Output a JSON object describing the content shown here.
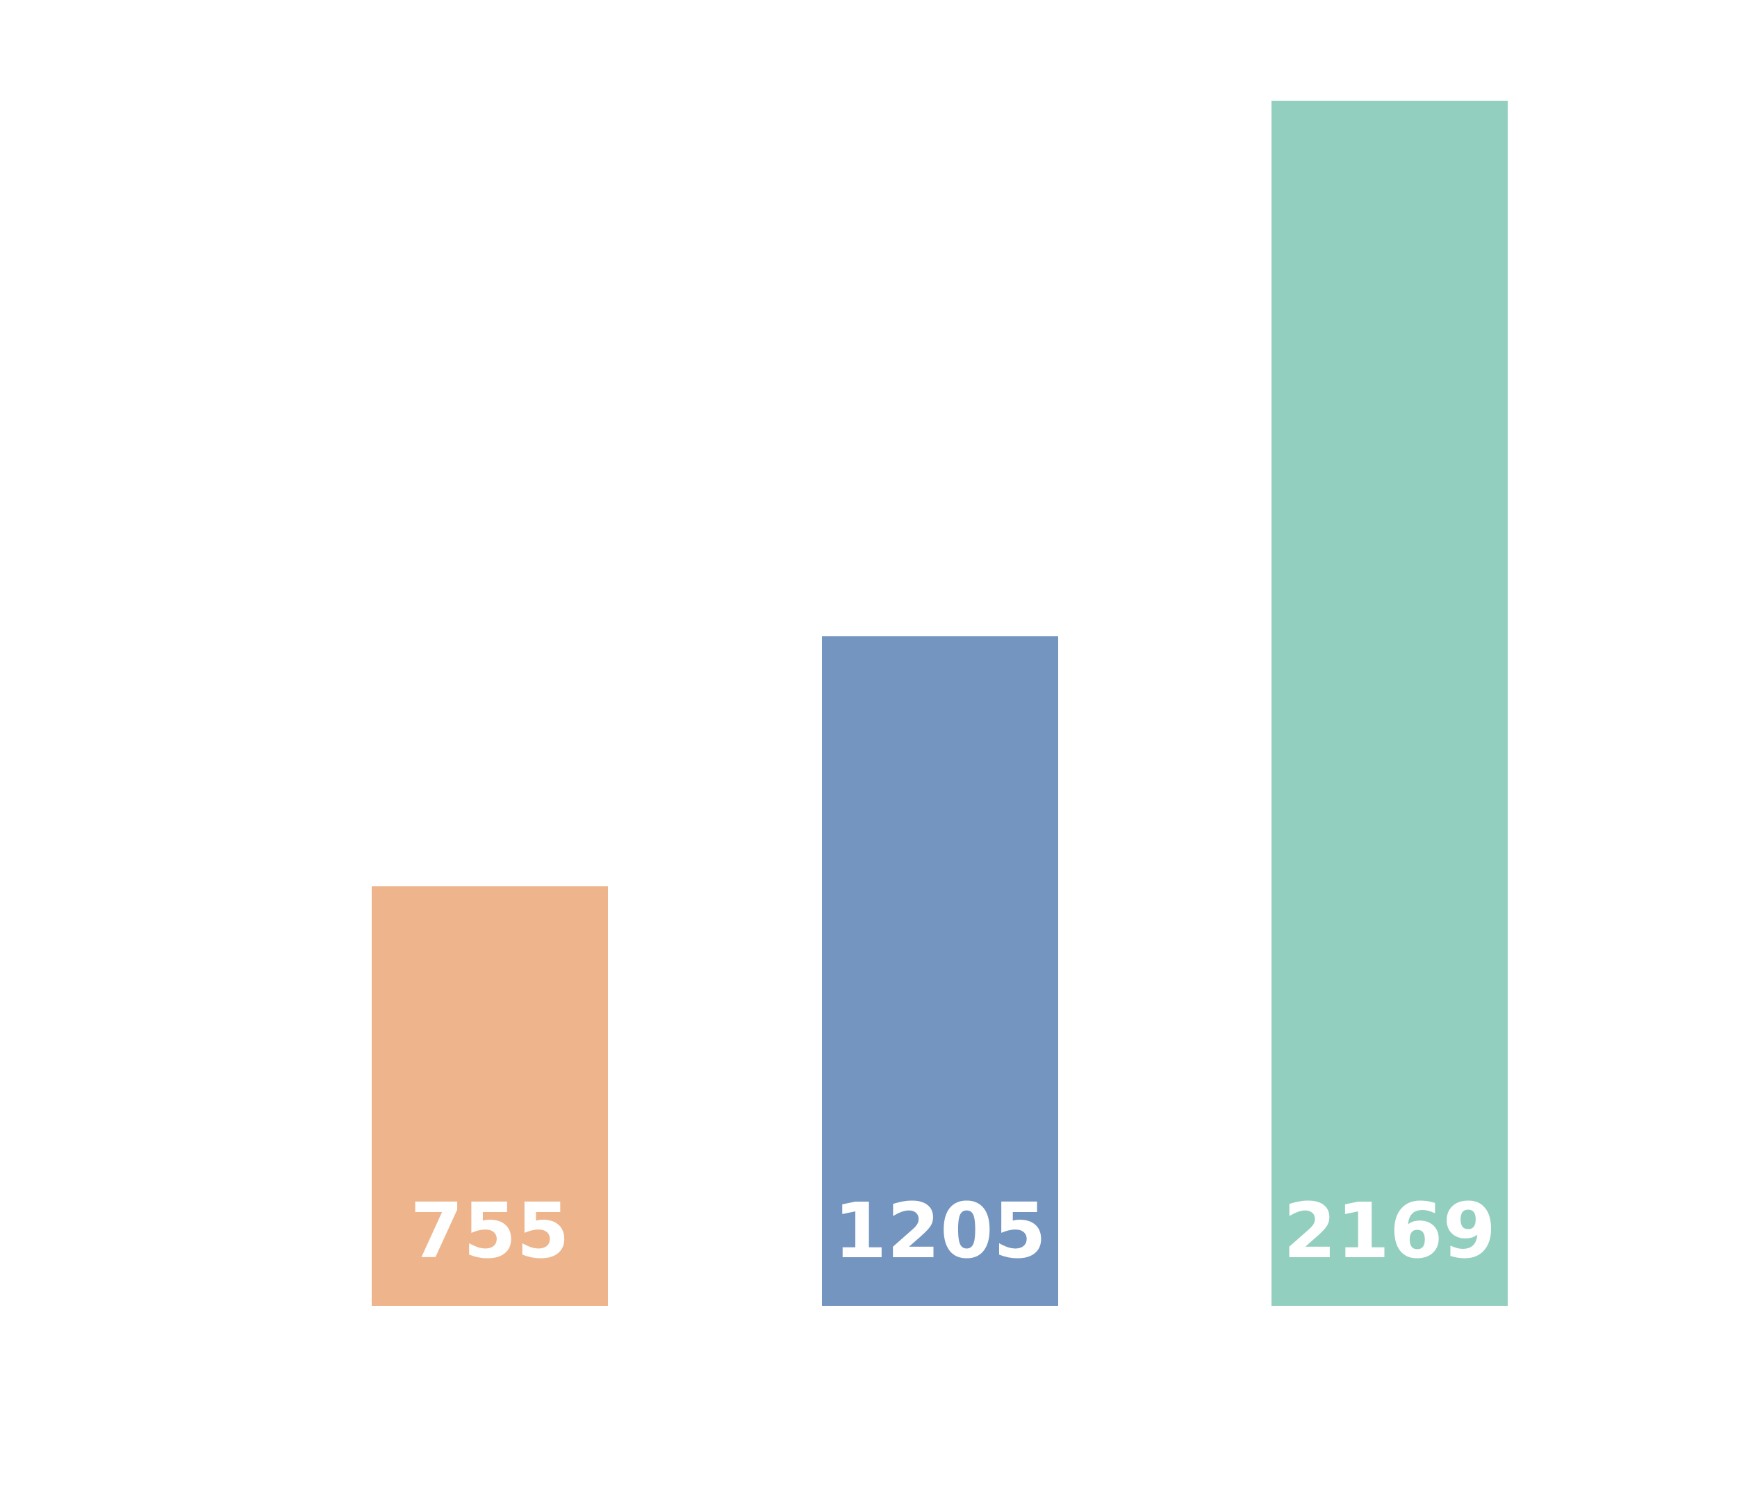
{
  "chart_data": {
    "type": "bar",
    "title": "",
    "xlabel": "",
    "ylabel": "",
    "ylim": [
      0,
      2169
    ],
    "grid": false,
    "legend": "none",
    "values": [
      755,
      1205,
      2169
    ],
    "data_labels": [
      "755",
      "1205",
      "2169"
    ],
    "colors": [
      "#eeb48b",
      "#7495c0",
      "#93cfbe"
    ]
  }
}
